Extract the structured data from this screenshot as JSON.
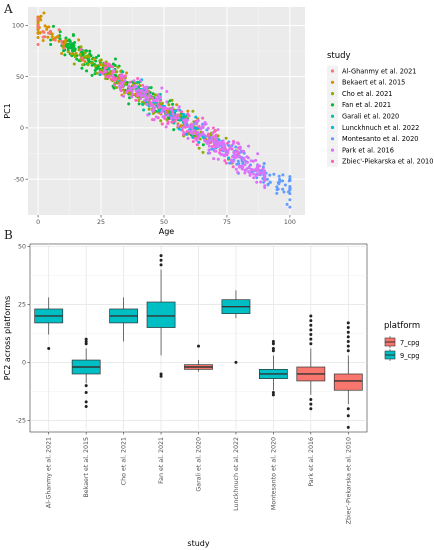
{
  "panel_labels": [
    "A",
    "B"
  ],
  "chart_data": [
    {
      "type": "scatter",
      "xlabel": "Age",
      "ylabel": "PC1",
      "xlim": [
        -4,
        106
      ],
      "ylim": [
        -85,
        118
      ],
      "x_ticks": [
        0,
        25,
        50,
        75,
        100
      ],
      "y_ticks": [
        -50,
        0,
        50,
        100
      ],
      "x_tick_labels": [
        "0",
        "25",
        "50",
        "75",
        "100"
      ],
      "y_tick_labels": [
        "-50",
        "0",
        "50",
        "100"
      ],
      "grid": true,
      "legend_title": "study",
      "legend_placement": "right",
      "series": [
        {
          "name": "Al-Ghanmy et al. 2021",
          "color": "#F8766D",
          "x_range": [
            0,
            95
          ],
          "centers": [
            [
              2,
              100
            ],
            [
              6,
              90
            ],
            [
              10,
              78
            ]
          ],
          "n": 20
        },
        {
          "name": "Bekaert et al. 2015",
          "color": "#D39200",
          "x_range": [
            0,
            90
          ],
          "centers": [
            [
              0,
              112
            ],
            [
              3,
              98
            ],
            [
              30,
              20
            ],
            [
              55,
              -10
            ]
          ],
          "n": 120
        },
        {
          "name": "Cho et al. 2021",
          "color": "#93AA00",
          "x_range": [
            10,
            80
          ],
          "centers": [
            [
              25,
              30
            ],
            [
              45,
              0
            ],
            [
              65,
              -25
            ]
          ],
          "n": 150
        },
        {
          "name": "Fan et al. 2021",
          "color": "#00BA38",
          "x_range": [
            5,
            75
          ],
          "centers": [
            [
              15,
              60
            ],
            [
              30,
              25
            ],
            [
              50,
              -10
            ]
          ],
          "n": 250
        },
        {
          "name": "Garali et al. 2020",
          "color": "#00C19F",
          "x_range": [
            20,
            70
          ],
          "centers": [
            [
              40,
              10
            ],
            [
              55,
              -15
            ]
          ],
          "n": 40
        },
        {
          "name": "Lunckhnuch et al. 2022",
          "color": "#00B9E3",
          "x_range": [
            20,
            80
          ],
          "centers": [
            [
              45,
              0
            ],
            [
              60,
              -20
            ]
          ],
          "n": 60
        },
        {
          "name": "Montesanto et al. 2020",
          "color": "#619CFF",
          "x_range": [
            40,
            100
          ],
          "centers": [
            [
              75,
              -25
            ],
            [
              90,
              -45
            ],
            [
              98,
              -60
            ]
          ],
          "n": 110
        },
        {
          "name": "Park et al. 2016",
          "color": "#DB72FB",
          "x_range": [
            15,
            90
          ],
          "centers": [
            [
              45,
              0
            ],
            [
              70,
              -30
            ],
            [
              85,
              -40
            ]
          ],
          "n": 260
        },
        {
          "name": "Zbiec'-Piekarska et al. 2010",
          "color": "#FF61C3",
          "x_range": [
            2,
            85
          ],
          "centers": [
            [
              30,
              20
            ],
            [
              50,
              -10
            ],
            [
              70,
              -30
            ]
          ],
          "n": 130
        }
      ],
      "trend": {
        "intercept": 100,
        "slope": -1.63
      }
    },
    {
      "type": "box",
      "xlabel": "study",
      "ylabel": "PC2 across platforms",
      "ylim": [
        -30,
        51
      ],
      "y_ticks": [
        -25,
        0,
        25,
        50
      ],
      "y_tick_labels": [
        "-25",
        "0",
        "25",
        "50"
      ],
      "grid": true,
      "legend_title": "platform",
      "legend_placement": "right",
      "categories": [
        "Al-Ghanmy et al. 2021",
        "Bekaert et al. 2015",
        "Cho et al. 2021",
        "Fan et al. 2021",
        "Garali et al. 2020",
        "Lunckhnuch et al. 2022",
        "Montesanto et al. 2020",
        "Park et al. 2016",
        "Zbiec'-Piekarska et al. 2010"
      ],
      "platforms": [
        {
          "name": "7_cpg",
          "color": "#F8766D"
        },
        {
          "name": "9_cpg",
          "color": "#00BFC4"
        }
      ],
      "boxes": [
        {
          "category": "Al-Ghanmy et al. 2021",
          "platform": "9_cpg",
          "min": 12,
          "q1": 17,
          "median": 20,
          "q3": 23,
          "max": 28,
          "outliers": [
            6
          ]
        },
        {
          "category": "Bekaert et al. 2015",
          "platform": "9_cpg",
          "min": -9,
          "q1": -5,
          "median": -2,
          "q3": 1,
          "max": 6,
          "outliers": [
            -10,
            -13,
            -17,
            -19,
            8,
            9,
            10
          ]
        },
        {
          "category": "Cho et al. 2021",
          "platform": "9_cpg",
          "min": 9,
          "q1": 17,
          "median": 20,
          "q3": 23,
          "max": 28,
          "outliers": []
        },
        {
          "category": "Fan et al. 2021",
          "platform": "9_cpg",
          "min": 3,
          "q1": 15,
          "median": 20,
          "q3": 26,
          "max": 40,
          "outliers": [
            -5,
            -6,
            42,
            44,
            46
          ]
        },
        {
          "category": "Garali et al. 2020",
          "platform": "7_cpg",
          "min": -4,
          "q1": -3,
          "median": -2,
          "q3": -1,
          "max": 1,
          "outliers": [
            7
          ]
        },
        {
          "category": "Lunckhnuch et al. 2022",
          "platform": "9_cpg",
          "min": 19,
          "q1": 21,
          "median": 24,
          "q3": 27,
          "max": 31,
          "outliers": [
            0
          ]
        },
        {
          "category": "Montesanto et al. 2020",
          "platform": "9_cpg",
          "min": -12,
          "q1": -7,
          "median": -5,
          "q3": -3,
          "max": 3,
          "outliers": [
            -13,
            -14,
            5,
            6,
            8,
            9
          ]
        },
        {
          "category": "Park et al. 2016",
          "platform": "7_cpg",
          "min": -14,
          "q1": -8,
          "median": -5,
          "q3": -2,
          "max": 6,
          "outliers": [
            -16,
            -18,
            -20,
            8,
            10,
            12,
            14,
            16,
            18,
            20
          ]
        },
        {
          "category": "Zbiec'-Piekarska et al. 2010",
          "platform": "7_cpg",
          "min": -18,
          "q1": -12,
          "median": -8,
          "q3": -5,
          "max": 3,
          "outliers": [
            -20,
            -23,
            -28,
            5,
            7,
            9,
            11,
            13,
            15,
            17
          ]
        }
      ]
    }
  ]
}
